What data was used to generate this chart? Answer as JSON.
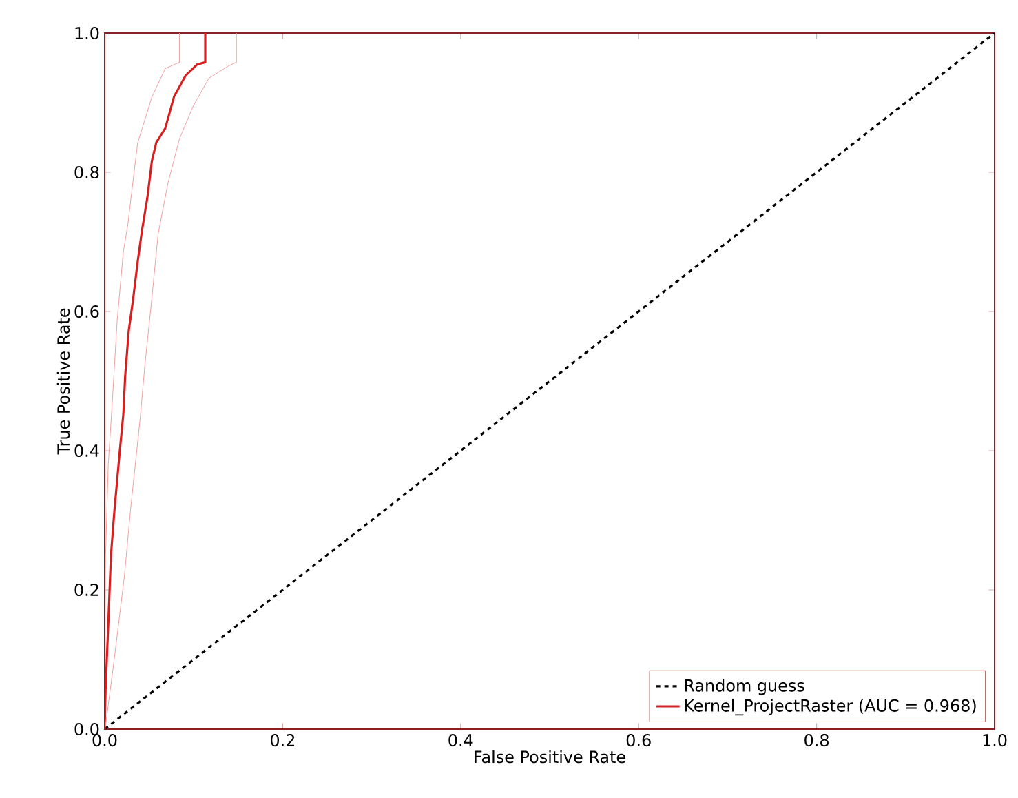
{
  "chart_data": {
    "type": "line",
    "xlabel": "False Positive Rate",
    "ylabel": "True Positive Rate",
    "xlim": [
      0,
      1
    ],
    "ylim": [
      0,
      1
    ],
    "xticks": [
      {
        "value": 0,
        "label": "0.0"
      },
      {
        "value": 0.2,
        "label": "0.2"
      },
      {
        "value": 0.4,
        "label": "0.4"
      },
      {
        "value": 0.6,
        "label": "0.6"
      },
      {
        "value": 0.8,
        "label": "0.8"
      },
      {
        "value": 1,
        "label": "1.0"
      }
    ],
    "yticks": [
      {
        "value": 0,
        "label": "0.0"
      },
      {
        "value": 0.2,
        "label": "0.2"
      },
      {
        "value": 0.4,
        "label": "0.4"
      },
      {
        "value": 0.6,
        "label": "0.6"
      },
      {
        "value": 0.8,
        "label": "0.8"
      },
      {
        "value": 1,
        "label": "1.0"
      }
    ],
    "legend": "bottom right",
    "grid": false,
    "marker": "none",
    "series": [
      {
        "name": "Random guess",
        "color": "#000000",
        "line_style": "dashed",
        "x": [
          0,
          1
        ],
        "values": [
          0,
          1
        ]
      },
      {
        "name": "Kernel_ProjectRaster (AUC = 0.968)",
        "color": "#d62020",
        "line_style": "solid",
        "x": [
          0,
          0.001,
          0.004,
          0.007,
          0.011,
          0.017,
          0.021,
          0.023,
          0.027,
          0.032,
          0.037,
          0.042,
          0.048,
          0.053,
          0.058,
          0.068,
          0.078,
          0.091,
          0.104,
          0.113,
          0.113
        ],
        "values": [
          0,
          0.057,
          0.15,
          0.249,
          0.315,
          0.4,
          0.453,
          0.507,
          0.572,
          0.618,
          0.671,
          0.717,
          0.764,
          0.816,
          0.843,
          0.863,
          0.909,
          0.939,
          0.955,
          0.958,
          1
        ]
      },
      {
        "color": "#f0a0a0",
        "line_style": "solid",
        "x": [
          0,
          0.001,
          0.004,
          0.009,
          0.014,
          0.021,
          0.026,
          0.037,
          0.053,
          0.068,
          0.084,
          0.084
        ],
        "values": [
          0.1,
          0.25,
          0.38,
          0.479,
          0.587,
          0.686,
          0.725,
          0.842,
          0.908,
          0.949,
          0.958,
          1
        ]
      },
      {
        "color": "#f0a0a0",
        "line_style": "solid",
        "x": [
          0.001,
          0.011,
          0.022,
          0.029,
          0.04,
          0.045,
          0.053,
          0.06,
          0.071,
          0.084,
          0.099,
          0.117,
          0.138,
          0.148,
          0.148
        ],
        "values": [
          0.005,
          0.103,
          0.218,
          0.315,
          0.448,
          0.521,
          0.619,
          0.711,
          0.784,
          0.848,
          0.894,
          0.935,
          0.952,
          0.958,
          1
        ]
      }
    ]
  }
}
